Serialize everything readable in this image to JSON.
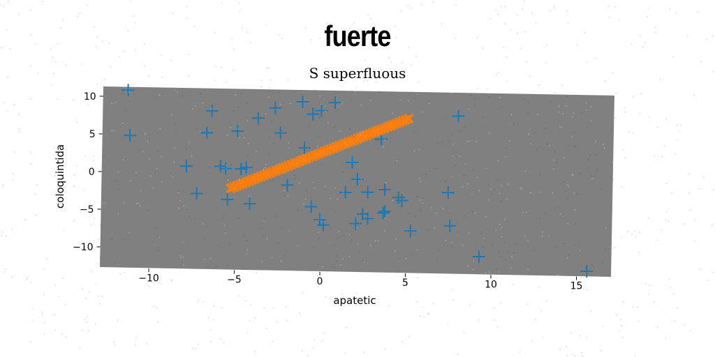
{
  "header": {
    "title": "fuerte"
  },
  "chart_data": {
    "type": "scatter",
    "title": "S superfluous",
    "xlabel": "apatetic",
    "ylabel": "coloquintida",
    "xlim": [
      -13,
      17
    ],
    "ylim": [
      -12.5,
      11.5
    ],
    "xticks": [
      -10,
      -5,
      0,
      5,
      10,
      15
    ],
    "yticks": [
      -10,
      -5,
      0,
      5,
      10
    ],
    "xtick_labels": [
      "−10",
      "−5",
      "0",
      "5",
      "10",
      "15"
    ],
    "ytick_labels": [
      "−10",
      "−5",
      "0",
      "5",
      "10"
    ],
    "background": "#808080",
    "grid": false,
    "series": [
      {
        "marker": "+",
        "color": "#1f77b4",
        "points": [
          [
            -11.2,
            10.2
          ],
          [
            -11.1,
            4.2
          ],
          [
            -6.3,
            7.7
          ],
          [
            -6.6,
            4.8
          ],
          [
            -4.8,
            5.1
          ],
          [
            -3.6,
            6.9
          ],
          [
            -2.6,
            8.3
          ],
          [
            -2.3,
            5.0
          ],
          [
            -1.0,
            9.2
          ],
          [
            -0.4,
            7.6
          ],
          [
            0.1,
            8.1
          ],
          [
            0.9,
            9.2
          ],
          [
            -0.9,
            3.1
          ],
          [
            -7.8,
            0.3
          ],
          [
            -5.8,
            0.4
          ],
          [
            -5.5,
            0.1
          ],
          [
            -4.6,
            0.1
          ],
          [
            -4.3,
            0.3
          ],
          [
            -7.2,
            -3.3
          ],
          [
            -5.4,
            -4.0
          ],
          [
            -4.1,
            -4.5
          ],
          [
            -1.9,
            -1.9
          ],
          [
            -0.5,
            -4.7
          ],
          [
            0.0,
            -6.4
          ],
          [
            0.2,
            -7.1
          ],
          [
            1.5,
            -2.7
          ],
          [
            1.9,
            1.3
          ],
          [
            2.2,
            -0.9
          ],
          [
            2.8,
            -2.6
          ],
          [
            2.5,
            -5.5
          ],
          [
            2.8,
            -6.1
          ],
          [
            2.1,
            -6.8
          ],
          [
            3.6,
            4.5
          ],
          [
            3.8,
            -2.2
          ],
          [
            3.7,
            -5.3
          ],
          [
            3.8,
            -5.1
          ],
          [
            4.6,
            -3.2
          ],
          [
            4.8,
            -3.6
          ],
          [
            5.3,
            -7.6
          ],
          [
            7.5,
            -2.4
          ],
          [
            7.6,
            -6.8
          ],
          [
            8.1,
            7.8
          ],
          [
            9.3,
            -10.8
          ],
          [
            15.6,
            -12.4
          ]
        ]
      },
      {
        "marker": "x",
        "color": "#ff7f0e",
        "line_from": [
          -5.2,
          -2.5
        ],
        "line_to": [
          5.2,
          7.3
        ],
        "count": 60
      }
    ]
  }
}
